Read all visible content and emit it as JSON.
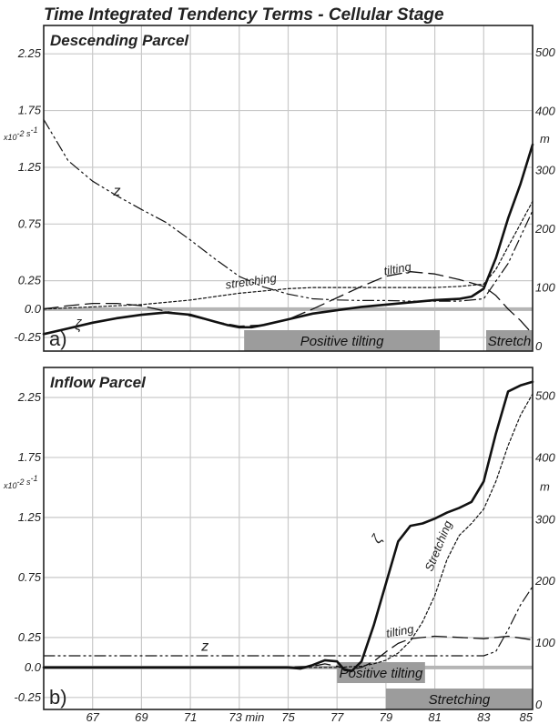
{
  "title": "Time Integrated Tendency Terms - Cellular Stage",
  "chart_data": [
    {
      "type": "line",
      "panel_letter": "a)",
      "title": "Descending Parcel",
      "y_unit_left": "x10⁻² s⁻¹",
      "y_unit_right": "m",
      "x_ticks": [
        "67",
        "69",
        "71",
        "73 min",
        "75",
        "77",
        "79",
        "81",
        "83",
        "85"
      ],
      "x_tick_values": [
        67,
        69,
        71,
        73,
        75,
        77,
        79,
        81,
        83,
        85
      ],
      "xlim": [
        65,
        85
      ],
      "y_ticks_left": [
        "-0.25",
        "0.0",
        "0.25",
        "0.75",
        "1.25",
        "1.75",
        "2.25"
      ],
      "y_ticks_left_values": [
        -0.25,
        0,
        0.25,
        0.75,
        1.25,
        1.75,
        2.25
      ],
      "ylim": [
        -0.37,
        2.5
      ],
      "y_ticks_right": [
        "0",
        "100",
        "200",
        "300",
        "400",
        "500"
      ],
      "y_ticks_right_values": [
        0,
        100,
        200,
        300,
        400,
        500
      ],
      "ylim_right": [
        -9,
        545
      ],
      "grid": true,
      "series": [
        {
          "name": "ζ",
          "style": "solid-thick",
          "x": [
            65,
            66,
            67,
            68,
            69,
            70,
            71,
            72,
            72.5,
            73,
            73.5,
            74,
            75,
            76,
            77,
            78,
            79,
            80,
            81,
            82,
            82.5,
            83,
            83.5,
            84,
            84.5,
            85
          ],
          "y": [
            -0.22,
            -0.17,
            -0.12,
            -0.08,
            -0.05,
            -0.03,
            -0.05,
            -0.11,
            -0.14,
            -0.16,
            -0.16,
            -0.14,
            -0.09,
            -0.04,
            -0.01,
            0.02,
            0.04,
            0.06,
            0.08,
            0.09,
            0.11,
            0.18,
            0.45,
            0.8,
            1.1,
            1.45
          ]
        },
        {
          "name": "tilting",
          "style": "long-dash",
          "x": [
            65,
            66,
            67,
            68,
            69,
            70,
            71,
            72,
            73,
            74,
            75,
            76,
            77,
            78,
            79,
            80,
            81,
            82,
            83,
            83.5,
            84,
            84.5,
            85
          ],
          "y": [
            0.0,
            0.03,
            0.05,
            0.05,
            0.03,
            -0.02,
            -0.06,
            -0.11,
            -0.15,
            -0.14,
            -0.09,
            0.0,
            0.1,
            0.2,
            0.29,
            0.33,
            0.31,
            0.26,
            0.2,
            0.12,
            0.0,
            -0.1,
            -0.22
          ]
        },
        {
          "name": "stretching",
          "style": "short-dash",
          "x": [
            65,
            67,
            69,
            71,
            72,
            73,
            74,
            75,
            76,
            77,
            78,
            79,
            80,
            81,
            82,
            83,
            83.5,
            84,
            84.5,
            85
          ],
          "y": [
            0.0,
            0.02,
            0.04,
            0.08,
            0.11,
            0.14,
            0.16,
            0.18,
            0.19,
            0.19,
            0.19,
            0.19,
            0.19,
            0.19,
            0.2,
            0.22,
            0.35,
            0.55,
            0.75,
            0.95
          ]
        },
        {
          "name": "z",
          "style": "dash-dot-dot",
          "axis": "right",
          "x": [
            65,
            66,
            67,
            68,
            69,
            70,
            71,
            72,
            73,
            74,
            75,
            76,
            77,
            78,
            79,
            80,
            81,
            82,
            83,
            84,
            84.5,
            85
          ],
          "y": [
            385,
            315,
            280,
            255,
            232,
            210,
            180,
            148,
            118,
            100,
            88,
            80,
            78,
            77,
            77,
            76,
            76,
            76,
            80,
            140,
            185,
            230
          ]
        }
      ],
      "labels": [
        {
          "text": "z",
          "x": 68,
          "y": 1.0
        },
        {
          "text": "stretching",
          "x": 73.5,
          "y": 0.21
        },
        {
          "text": "tilting",
          "x": 79.5,
          "y": 0.32
        },
        {
          "text": "ζ",
          "x": 66.4,
          "y": -0.18
        }
      ],
      "bars": [
        {
          "text": "Positive tilting",
          "x_start": 73.2,
          "x_end": 81.2
        },
        {
          "text": "Stretch",
          "x_start": 83.1,
          "x_end": 85
        }
      ]
    },
    {
      "type": "line",
      "panel_letter": "b)",
      "title": "Inflow Parcel",
      "y_unit_left": "x10⁻² s⁻¹",
      "y_unit_right": "m",
      "x_ticks": [
        "67",
        "69",
        "71",
        "73 min",
        "75",
        "77",
        "79",
        "81",
        "83",
        "85"
      ],
      "x_tick_values": [
        67,
        69,
        71,
        73,
        75,
        77,
        79,
        81,
        83,
        85
      ],
      "xlim": [
        65,
        85
      ],
      "y_ticks_left": [
        "-0.25",
        "0.0",
        "0.25",
        "0.75",
        "1.25",
        "1.75",
        "2.25"
      ],
      "y_ticks_left_values": [
        -0.25,
        0,
        0.25,
        0.75,
        1.25,
        1.75,
        2.25
      ],
      "ylim": [
        -0.35,
        2.5
      ],
      "y_ticks_right": [
        "0",
        "100",
        "200",
        "300",
        "400",
        "500"
      ],
      "y_ticks_right_values": [
        0,
        100,
        200,
        300,
        400,
        500
      ],
      "ylim_right": [
        -9,
        545
      ],
      "grid": true,
      "series": [
        {
          "name": "ζ",
          "style": "solid-thick",
          "x": [
            65,
            70,
            75,
            75.5,
            76,
            76.5,
            77,
            77.3,
            77.6,
            78,
            78.5,
            79,
            79.5,
            80,
            80.5,
            81,
            81.5,
            82,
            82.5,
            83,
            83.5,
            84,
            84.5,
            85
          ],
          "y": [
            0.0,
            0.0,
            0.0,
            -0.01,
            0.02,
            0.06,
            0.05,
            -0.02,
            -0.03,
            0.05,
            0.35,
            0.7,
            1.05,
            1.18,
            1.2,
            1.24,
            1.29,
            1.33,
            1.38,
            1.55,
            1.95,
            2.3,
            2.35,
            2.38
          ]
        },
        {
          "name": "tilting",
          "style": "long-dash",
          "x": [
            65,
            75,
            76,
            76.5,
            77,
            77.5,
            78,
            78.5,
            79,
            79.5,
            80,
            81,
            82,
            83,
            84,
            85
          ],
          "y": [
            0.0,
            0.0,
            0.01,
            0.03,
            0.01,
            -0.02,
            0.0,
            0.05,
            0.13,
            0.2,
            0.24,
            0.26,
            0.25,
            0.24,
            0.26,
            0.23
          ]
        },
        {
          "name": "stretching",
          "style": "short-dash",
          "x": [
            65,
            77,
            78,
            78.5,
            79,
            79.5,
            80,
            80.5,
            81,
            81.5,
            82,
            82.5,
            83,
            83.5,
            84,
            84.5,
            85
          ],
          "y": [
            0.0,
            0.0,
            0.01,
            0.03,
            0.06,
            0.12,
            0.22,
            0.38,
            0.6,
            0.9,
            1.1,
            1.2,
            1.32,
            1.55,
            1.85,
            2.1,
            2.28
          ]
        },
        {
          "name": "z",
          "style": "dash-dot-dot",
          "axis": "right",
          "x": [
            65,
            70,
            75,
            80,
            83,
            83.5,
            84,
            84.5,
            85
          ],
          "y": [
            78,
            78,
            78,
            78,
            78,
            85,
            120,
            160,
            190
          ]
        }
      ],
      "labels": [
        {
          "text": "z",
          "x": 71.6,
          "y": 0.14
        },
        {
          "text": "tilting",
          "x": 79.6,
          "y": 0.27
        },
        {
          "text": "Stretching",
          "x": 81.3,
          "y": 1.0
        },
        {
          "text": "ζ",
          "x": 78.8,
          "y": 1.05
        }
      ],
      "bars": [
        {
          "text": "Positive tilting",
          "x_start": 77.0,
          "x_end": 80.6
        },
        {
          "text": "Stretching",
          "x_start": 79.0,
          "x_end": 85
        }
      ]
    }
  ]
}
